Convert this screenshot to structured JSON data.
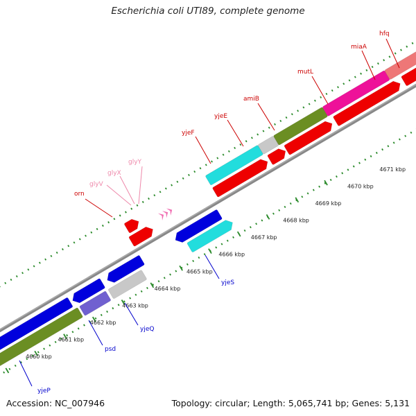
{
  "title": "Escherichia coli UTI89, complete genome",
  "footer": {
    "accession": "Accession: NC_007946",
    "summary": "Topology: circular; Length: 5,065,741 bp; Genes: 5,131"
  },
  "colors": {
    "backbone": "#888888",
    "tick": "#2a8a2a",
    "red": "#ee0000",
    "blue": "#0000dd",
    "cyan": "#22dddd",
    "olive": "#6b8e23",
    "magenta": "#ee1199",
    "pink": "#ee7777",
    "gray": "#c8c8c8",
    "violet": "#7060d0",
    "label_red": "#cc0000",
    "label_blue": "#0000cc",
    "label_pink": "#ee88aa"
  },
  "scale": {
    "unit": "kbp",
    "labels": [
      "4660 kbp",
      "4661 kbp",
      "4662 kbp",
      "4663 kbp",
      "4664 kbp",
      "4665 kbp",
      "4666 kbp",
      "4667 kbp",
      "4668 kbp",
      "4669 kbp",
      "4670 kbp",
      "4671 kbp"
    ]
  },
  "genes": [
    {
      "name": "yjeP",
      "strand": "-",
      "color": "blue"
    },
    {
      "name": "psd",
      "strand": "-",
      "color": "violet"
    },
    {
      "name": "yjeQ",
      "strand": "-",
      "color": "gray"
    },
    {
      "name": "yjeS",
      "strand": "-",
      "color": "cyan"
    },
    {
      "name": "orn",
      "strand": "+",
      "color": "red"
    },
    {
      "name": "glyV",
      "strand": "+",
      "color": "pink"
    },
    {
      "name": "glyX",
      "strand": "+",
      "color": "pink"
    },
    {
      "name": "glyY",
      "strand": "+",
      "color": "pink"
    },
    {
      "name": "yjeF",
      "strand": "+",
      "color": "cyan"
    },
    {
      "name": "yjeE",
      "strand": "+",
      "color": "gray"
    },
    {
      "name": "amiB",
      "strand": "+",
      "color": "olive"
    },
    {
      "name": "mutL",
      "strand": "+",
      "color": "magenta"
    },
    {
      "name": "miaA",
      "strand": "+",
      "color": "pink"
    },
    {
      "name": "hfq",
      "strand": "+",
      "color": "gray"
    }
  ]
}
